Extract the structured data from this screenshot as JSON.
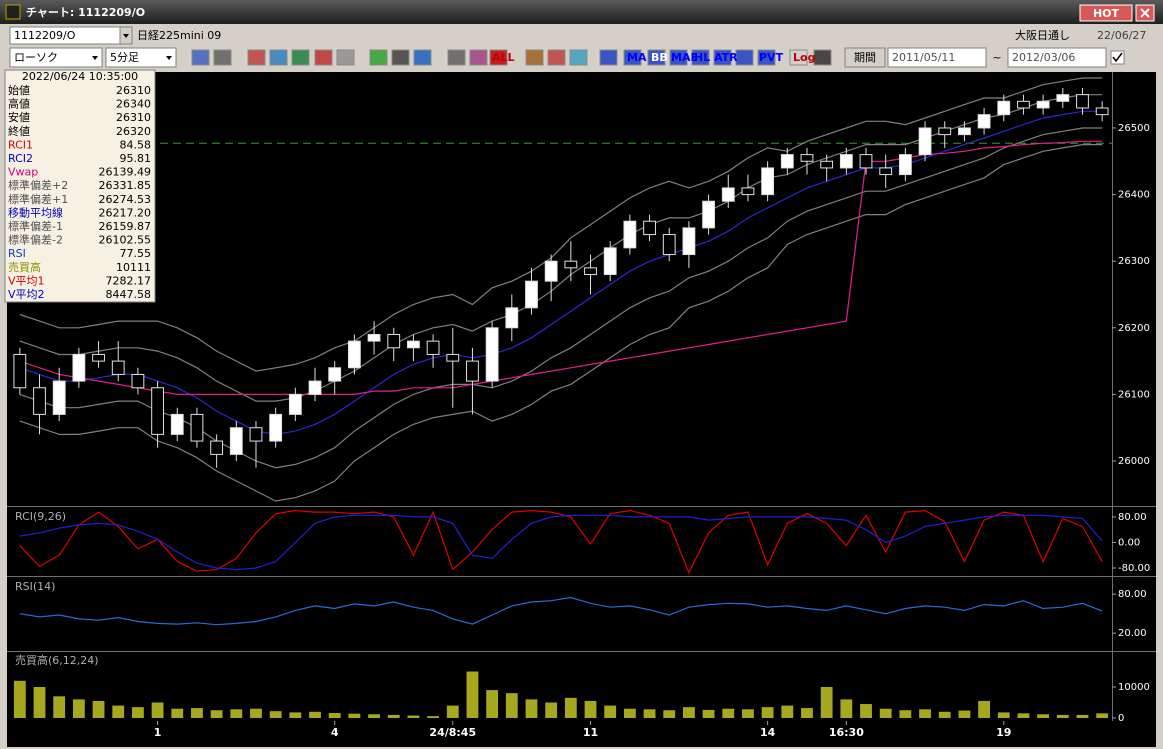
{
  "window": {
    "title": "チャート: 1112209/O",
    "hot": "HOT"
  },
  "toolbar": {
    "symbol": "1112209/O",
    "name": "日経225mini 09",
    "market": "大阪日通し",
    "date": "22/06/27",
    "chart_style": "ローソク",
    "interval": "5分足",
    "buttons": [
      "ALL",
      "MA",
      "BB",
      "MAE",
      "HL",
      "ATR",
      "PVT",
      "Log"
    ],
    "period_button": "期間",
    "from": "2011/05/11",
    "tilde": "~",
    "to": "2012/03/06"
  },
  "info_panel": {
    "timestamp": "2022/06/24 10:35:00",
    "rows": [
      {
        "label": "始値",
        "value": "26310",
        "color": "#000000"
      },
      {
        "label": "高値",
        "value": "26340",
        "color": "#000000"
      },
      {
        "label": "安値",
        "value": "26310",
        "color": "#000000"
      },
      {
        "label": "終値",
        "value": "26320",
        "color": "#000000"
      },
      {
        "label": "RCI1",
        "value": "84.58",
        "color": "#d00000"
      },
      {
        "label": "RCI2",
        "value": "95.81",
        "color": "#0000c0"
      },
      {
        "label": "Vwap",
        "value": "26139.49",
        "color": "#d0007a"
      },
      {
        "label": "標準偏差+2",
        "value": "26331.85",
        "color": "#505050"
      },
      {
        "label": "標準偏差+1",
        "value": "26274.53",
        "color": "#505050"
      },
      {
        "label": "移動平均線",
        "value": "26217.20",
        "color": "#0000c0"
      },
      {
        "label": "標準偏差-1",
        "value": "26159.87",
        "color": "#505050"
      },
      {
        "label": "標準偏差-2",
        "value": "26102.55",
        "color": "#505050"
      },
      {
        "label": "RSI",
        "value": "77.55",
        "color": "#0040d0"
      },
      {
        "label": "売買高",
        "value": "10111",
        "color": "#909000"
      },
      {
        "label": "V平均1",
        "value": "7282.17",
        "color": "#d00000"
      },
      {
        "label": "V平均2",
        "value": "8447.58",
        "color": "#0000c0"
      }
    ]
  },
  "chart_data": [
    {
      "type": "candlestick",
      "categories": [
        null,
        null,
        null,
        null,
        null,
        null,
        null,
        "1",
        null,
        null,
        null,
        null,
        null,
        null,
        null,
        null,
        "4",
        null,
        null,
        null,
        null,
        null,
        "24/8:45",
        null,
        null,
        null,
        null,
        null,
        null,
        "11",
        null,
        null,
        null,
        null,
        null,
        null,
        null,
        null,
        "14",
        null,
        null,
        null,
        "16:30",
        null,
        null,
        null,
        null,
        null,
        null,
        null,
        "19",
        null,
        null,
        null,
        null,
        null
      ],
      "open": [
        26160,
        26110,
        26070,
        26120,
        26160,
        26150,
        26130,
        26110,
        26040,
        26070,
        26030,
        26010,
        26050,
        26030,
        26070,
        26100,
        26120,
        26140,
        26180,
        26190,
        26170,
        26180,
        26160,
        26150,
        26120,
        26200,
        26230,
        26270,
        26300,
        26290,
        26280,
        26320,
        26360,
        26340,
        26310,
        26350,
        26390,
        26410,
        26400,
        26440,
        26460,
        26450,
        26440,
        26460,
        26440,
        26430,
        26460,
        26500,
        26490,
        26500,
        26520,
        26540,
        26530,
        26540,
        26550,
        26530
      ],
      "high": [
        26170,
        26130,
        26140,
        26170,
        26180,
        26180,
        26140,
        26120,
        26080,
        26080,
        26040,
        26060,
        26060,
        26080,
        26110,
        26140,
        26150,
        26190,
        26210,
        26200,
        26190,
        26190,
        26200,
        26170,
        26210,
        26250,
        26290,
        26310,
        26330,
        26310,
        26330,
        26370,
        26370,
        26350,
        26360,
        26400,
        26430,
        26430,
        26450,
        26470,
        26470,
        26460,
        26470,
        26470,
        26460,
        26470,
        26510,
        26510,
        26510,
        26530,
        26550,
        26550,
        26550,
        26560,
        26560,
        26540
      ],
      "low": [
        26100,
        26040,
        26060,
        26110,
        26140,
        26120,
        26100,
        26020,
        26030,
        26020,
        25990,
        26000,
        25990,
        26020,
        26060,
        26090,
        26100,
        26130,
        26160,
        26150,
        26150,
        26140,
        26080,
        26070,
        26110,
        26180,
        26220,
        26240,
        26270,
        26250,
        26270,
        26310,
        26330,
        26300,
        26290,
        26340,
        26380,
        26390,
        26390,
        26430,
        26430,
        26420,
        26430,
        26430,
        26410,
        26420,
        26450,
        26470,
        26480,
        26490,
        26510,
        26520,
        26520,
        26530,
        26520,
        26510
      ],
      "close": [
        26110,
        26070,
        26120,
        26160,
        26150,
        26130,
        26110,
        26040,
        26070,
        26030,
        26010,
        26050,
        26030,
        26070,
        26100,
        26120,
        26140,
        26180,
        26190,
        26170,
        26180,
        26160,
        26150,
        26120,
        26200,
        26230,
        26270,
        26300,
        26290,
        26280,
        26320,
        26360,
        26340,
        26310,
        26350,
        26390,
        26410,
        26400,
        26440,
        26460,
        26450,
        26440,
        26460,
        26440,
        26430,
        26460,
        26500,
        26490,
        26500,
        26520,
        26540,
        26530,
        26540,
        26550,
        26530,
        26520
      ],
      "series": [
        {
          "color": "#808080",
          "values": [
            26220,
            26210,
            26200,
            26200,
            26205,
            26210,
            26210,
            26210,
            26200,
            26185,
            26165,
            26150,
            26135,
            26140,
            26145,
            26155,
            26170,
            26180,
            26200,
            26220,
            26235,
            26245,
            26250,
            26235,
            26260,
            26270,
            26285,
            26305,
            26335,
            26355,
            26375,
            26395,
            26410,
            26420,
            26410,
            26420,
            26435,
            26455,
            26470,
            26465,
            26480,
            26490,
            26500,
            26510,
            26510,
            26505,
            26515,
            26525,
            26535,
            26545,
            26545,
            26555,
            26565,
            26570,
            26575,
            26575
          ]
        },
        {
          "color": "#808080",
          "values": [
            26180,
            26170,
            26160,
            26160,
            26165,
            26170,
            26170,
            26165,
            26155,
            26140,
            26120,
            26105,
            26090,
            26090,
            26095,
            26105,
            26120,
            26135,
            26155,
            26175,
            26190,
            26200,
            26205,
            26195,
            26210,
            26220,
            26235,
            26255,
            26280,
            26300,
            26320,
            26340,
            26355,
            26365,
            26365,
            26375,
            26390,
            26410,
            26425,
            26430,
            26445,
            26455,
            26465,
            26475,
            26475,
            26475,
            26485,
            26495,
            26505,
            26515,
            26520,
            26530,
            26540,
            26545,
            26550,
            26550
          ]
        },
        {
          "color": "#2828d0",
          "values": [
            26140,
            26130,
            26120,
            26120,
            26125,
            26130,
            26130,
            26120,
            26110,
            26095,
            26075,
            26060,
            26045,
            26040,
            26045,
            26055,
            26070,
            26090,
            26110,
            26130,
            26145,
            26155,
            26160,
            26155,
            26160,
            26170,
            26185,
            26205,
            26225,
            26245,
            26265,
            26285,
            26300,
            26310,
            26320,
            26330,
            26345,
            26365,
            26380,
            26395,
            26410,
            26420,
            26430,
            26440,
            26440,
            26445,
            26455,
            26465,
            26475,
            26485,
            26495,
            26505,
            26515,
            26520,
            26525,
            26525
          ]
        },
        {
          "color": "#808080",
          "values": [
            26100,
            26090,
            26080,
            26080,
            26085,
            26090,
            26090,
            26075,
            26065,
            26050,
            26030,
            26015,
            26000,
            25990,
            25995,
            26005,
            26020,
            26045,
            26065,
            26085,
            26100,
            26110,
            26115,
            26115,
            26110,
            26120,
            26135,
            26155,
            26170,
            26190,
            26210,
            26230,
            26245,
            26255,
            26275,
            26285,
            26300,
            26320,
            26335,
            26360,
            26375,
            26385,
            26395,
            26405,
            26405,
            26415,
            26425,
            26435,
            26445,
            26455,
            26470,
            26480,
            26490,
            26495,
            26500,
            26500
          ]
        },
        {
          "color": "#808080",
          "values": [
            26060,
            26050,
            26040,
            26040,
            26045,
            26050,
            26050,
            26030,
            26020,
            26005,
            25985,
            25970,
            25955,
            25940,
            25945,
            25955,
            25970,
            26000,
            26020,
            26040,
            26055,
            26065,
            26070,
            26075,
            26060,
            26070,
            26085,
            26105,
            26115,
            26135,
            26155,
            26175,
            26190,
            26200,
            26230,
            26240,
            26255,
            26275,
            26290,
            26325,
            26340,
            26350,
            26360,
            26370,
            26370,
            26385,
            26395,
            26405,
            26415,
            26425,
            26445,
            26455,
            26465,
            26470,
            26475,
            26475
          ]
        },
        {
          "color": "#e0208a",
          "values": [
            26150,
            26140,
            26130,
            26125,
            26120,
            26115,
            26110,
            26105,
            26100,
            26100,
            26100,
            26100,
            26100,
            26100,
            26100,
            26100,
            26100,
            26100,
            26105,
            26105,
            26110,
            26110,
            26110,
            26115,
            26120,
            26125,
            26130,
            26135,
            26140,
            26145,
            26150,
            26155,
            26160,
            26165,
            26170,
            26175,
            26180,
            26185,
            26190,
            26195,
            26200,
            26205,
            26210,
            26450,
            26450,
            26455,
            26460,
            26462,
            26465,
            26470,
            26472,
            26475,
            26477,
            26478,
            26480,
            26480
          ]
        }
      ],
      "ref_line": 26477,
      "ref_color": "#30a030",
      "ylim": [
        25934,
        26578
      ],
      "yticks": [
        26000,
        26100,
        26200,
        26300,
        26400,
        26500
      ]
    },
    {
      "type": "line",
      "title": "RCI(9,26)",
      "series": [
        {
          "color": "#e00000",
          "values": [
            -10,
            -75,
            -40,
            55,
            95,
            50,
            -20,
            10,
            -60,
            -90,
            -85,
            -50,
            30,
            90,
            100,
            95,
            95,
            90,
            95,
            80,
            -40,
            95,
            -85,
            -30,
            40,
            95,
            100,
            95,
            80,
            -5,
            90,
            100,
            85,
            60,
            -95,
            30,
            85,
            95,
            -70,
            60,
            90,
            60,
            -10,
            85,
            -30,
            95,
            100,
            65,
            -60,
            70,
            95,
            85,
            -60,
            75,
            50,
            -60
          ]
        },
        {
          "color": "#2020d0",
          "values": [
            20,
            30,
            45,
            55,
            60,
            55,
            35,
            10,
            -30,
            -65,
            -80,
            -85,
            -80,
            -60,
            0,
            60,
            80,
            85,
            85,
            85,
            80,
            80,
            60,
            -40,
            -50,
            10,
            60,
            80,
            85,
            85,
            85,
            80,
            80,
            80,
            80,
            70,
            75,
            80,
            80,
            80,
            80,
            75,
            70,
            40,
            0,
            20,
            50,
            60,
            70,
            80,
            85,
            85,
            85,
            80,
            75,
            5
          ]
        }
      ],
      "ylim": [
        -102,
        108
      ],
      "yticks": [
        {
          "value": 80,
          "label": "80.00"
        },
        {
          "value": 0,
          "label": "0.00"
        },
        {
          "value": -80,
          "label": "-80.00"
        }
      ]
    },
    {
      "type": "line",
      "title": "RSI(14)",
      "series": [
        {
          "color": "#2a6ad8",
          "values": [
            50,
            45,
            48,
            42,
            40,
            44,
            38,
            35,
            34,
            36,
            33,
            35,
            38,
            45,
            55,
            62,
            58,
            65,
            62,
            68,
            60,
            55,
            42,
            34,
            48,
            62,
            68,
            70,
            75,
            66,
            60,
            62,
            56,
            48,
            60,
            64,
            66,
            65,
            60,
            62,
            58,
            55,
            62,
            56,
            50,
            58,
            62,
            60,
            55,
            64,
            62,
            70,
            58,
            60,
            66,
            54
          ]
        }
      ],
      "ylim": [
        -6,
        105
      ],
      "yticks": [
        {
          "value": 80,
          "label": "80.00"
        },
        {
          "value": 20,
          "label": "20.00"
        }
      ]
    },
    {
      "type": "bar",
      "title": "売買高(6,12,24)",
      "color": "#a8a820",
      "values": [
        12000,
        10000,
        7000,
        6000,
        5500,
        4000,
        3500,
        5000,
        3000,
        3200,
        2500,
        2800,
        3000,
        2200,
        1800,
        2000,
        1600,
        1400,
        1200,
        1000,
        800,
        600,
        4000,
        15000,
        9000,
        8000,
        6000,
        5000,
        6500,
        5500,
        4000,
        3000,
        2800,
        2500,
        3500,
        2600,
        3000,
        2800,
        3500,
        4000,
        3200,
        10000,
        6000,
        4500,
        3000,
        2500,
        2800,
        2000,
        2400,
        5500,
        1800,
        1500,
        1200,
        1000,
        1000,
        1500
      ],
      "ylim": [
        -645,
        21290
      ],
      "yticks": [
        10000,
        0
      ]
    }
  ]
}
